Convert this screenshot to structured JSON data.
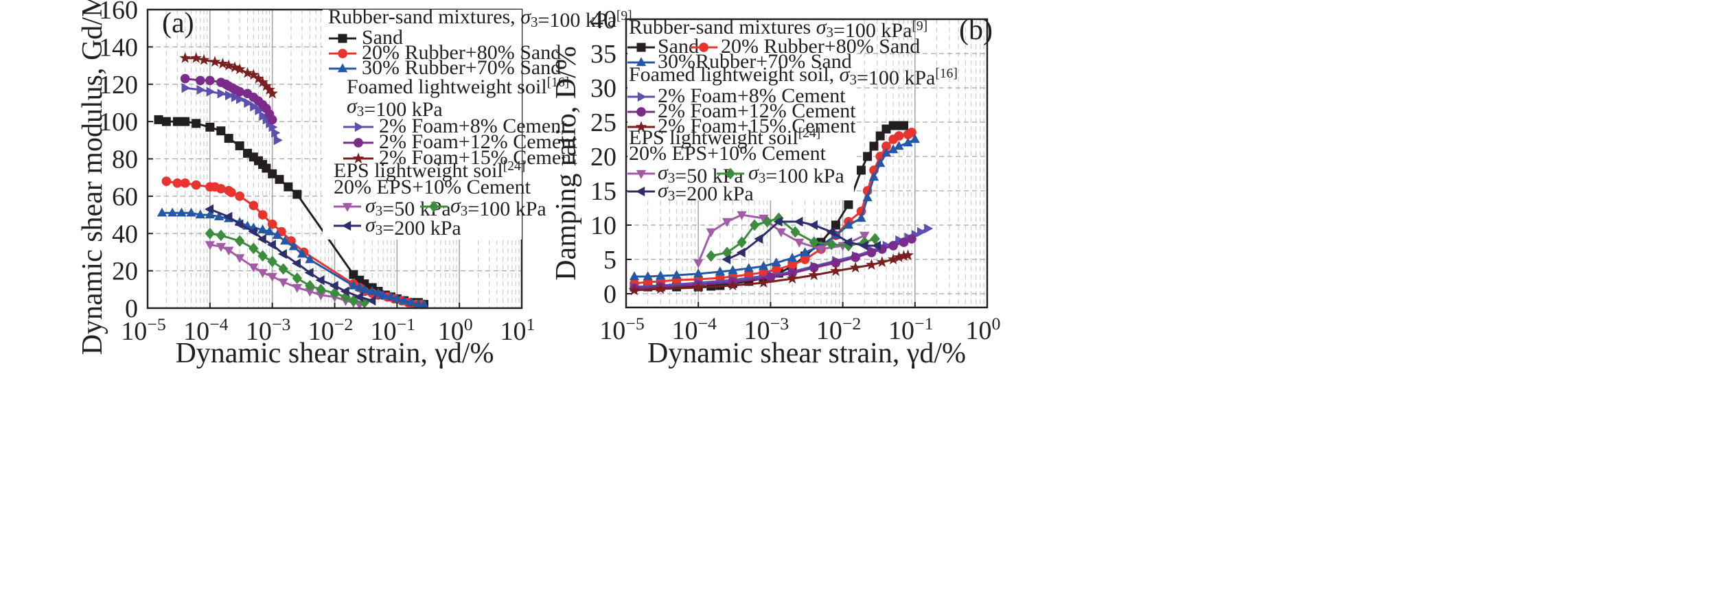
{
  "colors": {
    "sand": "#231f20",
    "rubber20": "#e8332e",
    "rubber30": "#2458a6",
    "foam8": "#5b4fb0",
    "foam12": "#7b2c8a",
    "foam15": "#7a1f1f",
    "eps50": "#a25ba6",
    "eps100": "#3d8b3d",
    "eps200": "#2d2d6b",
    "grid_major": "#a6a6a6",
    "grid_minor": "#c9c9c9"
  },
  "chart_data": [
    {
      "type": "line",
      "panel_label": "(a)",
      "xlabel": "Dynamic shear strain, γd/%",
      "ylabel": "Dynamic shear modulus, Gd/MPa",
      "x_scale": "log",
      "xlim": [
        1e-05,
        10
      ],
      "ylim": [
        0,
        160
      ],
      "x_tick_labels": [
        "10−5",
        "10−4",
        "10−3",
        "10−2",
        "10−1",
        "100",
        "101"
      ],
      "y_ticks": [
        0,
        20,
        40,
        60,
        80,
        100,
        120,
        140,
        160
      ],
      "grid": true,
      "legend_groups": [
        {
          "title": "Rubber-sand mixtures, σ3=100 kPa[9]",
          "entries": [
            "Sand",
            "20% Rubber+80% Sand",
            "30% Rubber+70% Sand"
          ]
        },
        {
          "title": "Foamed lightweight soil[16] σ3=100 kPa",
          "entries": [
            "2% Foam+8% Cement",
            "2% Foam+12% Cement",
            "2% Foam+15% Cement"
          ]
        },
        {
          "title": "EPS lightweight soil[24] 20% EPS+10% Cement",
          "entries": [
            "σ3=50 kPa",
            "σ3=100 kPa",
            "σ3=200 kPa"
          ]
        }
      ],
      "series": [
        {
          "name": "Sand",
          "marker": "square",
          "color_key": "sand",
          "x": [
            1.5e-05,
            2e-05,
            3e-05,
            4e-05,
            6e-05,
            0.0001,
            0.00015,
            0.0002,
            0.0003,
            0.0004,
            0.0005,
            0.0006,
            0.0007,
            0.0008,
            0.001,
            0.0013,
            0.0018,
            0.0025,
            0.02,
            0.025,
            0.03,
            0.04,
            0.05,
            0.065,
            0.08,
            0.1,
            0.13,
            0.17,
            0.22,
            0.27
          ],
          "y": [
            101,
            100,
            100,
            100,
            99,
            97,
            95,
            91,
            87,
            83,
            81,
            79,
            77,
            75,
            72,
            69,
            65,
            61,
            18,
            15,
            13,
            11,
            9,
            7,
            6,
            5,
            4,
            3,
            3,
            2
          ]
        },
        {
          "name": "20% Rubber+80% Sand",
          "marker": "circle",
          "color_key": "rubber20",
          "x": [
            2e-05,
            3e-05,
            4e-05,
            6e-05,
            0.0001,
            0.00012,
            0.00015,
            0.0002,
            0.00022,
            0.0003,
            0.0005,
            0.0007,
            0.001,
            0.0014,
            0.002,
            0.0032,
            0.02,
            0.025,
            0.03,
            0.04,
            0.05,
            0.07,
            0.09,
            0.12,
            0.15,
            0.2,
            0.25
          ],
          "y": [
            68,
            67,
            67,
            66,
            65,
            65,
            64,
            63,
            62,
            60,
            55,
            50,
            45,
            41,
            36,
            30,
            13,
            11,
            9,
            8,
            7,
            6,
            5,
            4,
            3,
            2,
            2
          ]
        },
        {
          "name": "30% Rubber+70% Sand",
          "marker": "triangle-up",
          "color_key": "rubber30",
          "x": [
            1.7e-05,
            2.5e-05,
            3.5e-05,
            5e-05,
            7e-05,
            0.0001,
            0.00014,
            0.0002,
            0.0003,
            0.0004,
            0.0005,
            0.0007,
            0.0009,
            0.0012,
            0.0016,
            0.0022,
            0.003,
            0.004,
            0.02,
            0.025,
            0.03,
            0.04,
            0.05,
            0.06,
            0.08,
            0.1,
            0.13,
            0.17,
            0.22,
            0.27
          ],
          "y": [
            51,
            51,
            51,
            51,
            50,
            50,
            49,
            48,
            46,
            44,
            43,
            42,
            41,
            39,
            36,
            33,
            29,
            26,
            12,
            11,
            10,
            9,
            8,
            7,
            6,
            5,
            4,
            3,
            2,
            2
          ]
        },
        {
          "name": "2% Foam+8% Cement",
          "marker": "triangle-right",
          "color_key": "foam8",
          "x": [
            4e-05,
            7e-05,
            0.0001,
            0.00015,
            0.0002,
            0.00025,
            0.0003,
            0.0004,
            0.0005,
            0.0006,
            0.0007,
            0.0008,
            0.0009,
            0.001,
            0.0011,
            0.0012
          ],
          "y": [
            118,
            117,
            116,
            115,
            114,
            113,
            112,
            110,
            108,
            106,
            103,
            101,
            99,
            97,
            94,
            90
          ]
        },
        {
          "name": "2% Foam+12% Cement",
          "marker": "circle",
          "color_key": "foam12",
          "x": [
            4e-05,
            7e-05,
            0.0001,
            0.00015,
            0.00018,
            0.0002,
            0.00023,
            0.00026,
            0.0003,
            0.0004,
            0.0005,
            0.0006,
            0.0007,
            0.0008,
            0.0009,
            0.001
          ],
          "y": [
            123,
            122,
            122,
            121,
            120,
            119,
            118,
            117,
            116,
            115,
            113,
            111,
            109,
            107,
            104,
            101
          ]
        },
        {
          "name": "2% Foam+15% Cement",
          "marker": "star",
          "color_key": "foam15",
          "x": [
            4e-05,
            6e-05,
            8e-05,
            0.00012,
            0.00016,
            0.0002,
            0.00025,
            0.0003,
            0.0004,
            0.0005,
            0.0006,
            0.0007,
            0.0008,
            0.0009,
            0.001
          ],
          "y": [
            134,
            134,
            133,
            132,
            131,
            130,
            129,
            128,
            126,
            125,
            123,
            121,
            119,
            117,
            115
          ]
        },
        {
          "name": "σ3=50 kPa",
          "marker": "triangle-down",
          "color_key": "eps50",
          "x": [
            0.0001,
            0.00015,
            0.0002,
            0.0003,
            0.0005,
            0.0007,
            0.001,
            0.0015,
            0.0025,
            0.004,
            0.006,
            0.01,
            0.015,
            0.02,
            0.025
          ],
          "y": [
            34,
            33,
            31,
            27,
            22,
            19,
            17,
            14,
            11,
            9,
            7,
            6,
            4,
            3,
            2
          ]
        },
        {
          "name": "σ3=100 kPa",
          "marker": "diamond",
          "color_key": "eps100",
          "x": [
            0.0001,
            0.00015,
            0.0003,
            0.0005,
            0.0007,
            0.001,
            0.0015,
            0.0025,
            0.004,
            0.006,
            0.01,
            0.015,
            0.02,
            0.03
          ],
          "y": [
            40,
            39,
            36,
            32,
            28,
            25,
            21,
            16,
            12,
            10,
            8,
            6,
            4,
            3
          ]
        },
        {
          "name": "σ3=200 kPa",
          "marker": "triangle-left",
          "color_key": "eps200",
          "x": [
            0.0001,
            0.0002,
            0.0003,
            0.0005,
            0.0007,
            0.001,
            0.0015,
            0.0025,
            0.004,
            0.006,
            0.01,
            0.015,
            0.025,
            0.04
          ],
          "y": [
            53,
            49,
            45,
            41,
            37,
            34,
            29,
            24,
            19,
            15,
            12,
            9,
            6,
            4
          ]
        }
      ]
    },
    {
      "type": "line",
      "panel_label": "(b)",
      "xlabel": "Dynamic shear strain, γd/%",
      "ylabel": "Damping ratio, D/%",
      "x_scale": "log",
      "xlim": [
        1e-05,
        1
      ],
      "ylim": [
        -2,
        40
      ],
      "x_tick_labels": [
        "10−5",
        "10−4",
        "10−3",
        "10−2",
        "10−1",
        "100"
      ],
      "y_ticks": [
        0,
        5,
        10,
        15,
        20,
        25,
        30,
        35,
        40
      ],
      "grid": true,
      "legend_groups": [
        {
          "title": "Rubber-sand mixtures σ3=100 kPa[9]",
          "entries": [
            "Sand",
            "20% Rubber+80% Sand",
            "30%Rubber+70% Sand"
          ]
        },
        {
          "title": "Foamed lightweight soil, σ3=100 kPa[16]",
          "entries": [
            "2% Foam+8% Cement",
            "2% Foam+12% Cement",
            "2% Foam+15% Cement"
          ]
        },
        {
          "title": "EPS lightweight soil[24] 20% EPS+10% Cement",
          "entries": [
            "σ3=50 kPa",
            "σ3=100 kPa",
            "σ3=200 kPa"
          ]
        }
      ],
      "series": [
        {
          "name": "Sand",
          "marker": "square",
          "color_key": "sand",
          "x": [
            1.3e-05,
            2e-05,
            3e-05,
            5e-05,
            0.0001,
            0.00015,
            0.0002,
            0.0003,
            0.0005,
            0.0008,
            0.0013,
            0.002,
            0.003,
            0.005,
            0.008,
            0.012,
            0.018,
            0.022,
            0.027,
            0.033,
            0.04,
            0.05,
            0.06,
            0.07
          ],
          "y": [
            1.0,
            1.0,
            1.0,
            1.0,
            1.0,
            1.1,
            1.2,
            1.5,
            1.8,
            2.3,
            3.0,
            4.0,
            5.5,
            7.5,
            10.0,
            13.0,
            18.0,
            20.0,
            21.5,
            23.0,
            24.0,
            24.5,
            24.5,
            24.5
          ]
        },
        {
          "name": "20% Rubber+80% Sand",
          "marker": "circle",
          "color_key": "rubber20",
          "x": [
            1.3e-05,
            2e-05,
            3e-05,
            5e-05,
            0.0001,
            0.0002,
            0.0003,
            0.0005,
            0.0008,
            0.0012,
            0.002,
            0.003,
            0.005,
            0.008,
            0.012,
            0.018,
            0.022,
            0.027,
            0.033,
            0.04,
            0.05,
            0.06,
            0.08,
            0.09
          ],
          "y": [
            1.5,
            1.7,
            1.8,
            2.0,
            2.1,
            2.3,
            2.5,
            2.8,
            3.1,
            3.5,
            4.2,
            5.0,
            6.5,
            8.5,
            10.5,
            12.0,
            15.0,
            18.0,
            20.0,
            21.5,
            22.5,
            23.0,
            23.2,
            23.5
          ]
        },
        {
          "name": "30%Rubber+70% Sand",
          "marker": "triangle-up",
          "color_key": "rubber30",
          "x": [
            1.3e-05,
            2e-05,
            3e-05,
            5e-05,
            0.0001,
            0.0002,
            0.0003,
            0.0005,
            0.0008,
            0.0012,
            0.002,
            0.003,
            0.005,
            0.008,
            0.012,
            0.018,
            0.022,
            0.027,
            0.033,
            0.04,
            0.05,
            0.06,
            0.08,
            0.1
          ],
          "y": [
            2.5,
            2.5,
            2.6,
            2.7,
            2.9,
            3.2,
            3.4,
            3.7,
            4.0,
            4.5,
            5.2,
            6.0,
            7.0,
            8.5,
            10.0,
            11.0,
            14.0,
            17.0,
            19.0,
            20.5,
            21.0,
            21.5,
            22.0,
            22.5
          ]
        },
        {
          "name": "2% Foam+8% Cement",
          "marker": "triangle-right",
          "color_key": "foam8",
          "x": [
            1.3e-05,
            3e-05,
            0.0001,
            0.0003,
            0.001,
            0.002,
            0.004,
            0.008,
            0.015,
            0.025,
            0.04,
            0.06,
            0.08,
            0.1,
            0.12,
            0.15
          ],
          "y": [
            1.0,
            1.2,
            1.6,
            2.0,
            2.7,
            3.2,
            4.0,
            4.8,
            5.5,
            6.3,
            7.0,
            7.8,
            8.2,
            8.6,
            9.0,
            9.5
          ]
        },
        {
          "name": "2% Foam+12% Cement",
          "marker": "circle",
          "color_key": "foam12",
          "x": [
            1.3e-05,
            3e-05,
            0.0001,
            0.0003,
            0.001,
            0.002,
            0.004,
            0.008,
            0.015,
            0.025,
            0.035,
            0.05,
            0.07,
            0.09
          ],
          "y": [
            0.8,
            1.0,
            1.3,
            1.7,
            2.4,
            3.0,
            3.8,
            4.5,
            5.3,
            6.0,
            6.5,
            7.0,
            7.5,
            8.0
          ]
        },
        {
          "name": "2% Foam+15% Cement",
          "marker": "star",
          "color_key": "foam15",
          "x": [
            1.3e-05,
            3e-05,
            0.0001,
            0.0003,
            0.0008,
            0.002,
            0.004,
            0.008,
            0.015,
            0.025,
            0.035,
            0.05,
            0.06,
            0.07,
            0.08
          ],
          "y": [
            0.5,
            0.7,
            0.9,
            1.2,
            1.6,
            2.2,
            2.7,
            3.3,
            3.8,
            4.2,
            4.6,
            5.0,
            5.3,
            5.5,
            5.6
          ]
        },
        {
          "name": "σ3=50 kPa",
          "marker": "triangle-down",
          "color_key": "eps50",
          "x": [
            0.0001,
            0.00015,
            0.00025,
            0.0004,
            0.0008,
            0.0014,
            0.0025,
            0.005,
            0.01,
            0.02
          ],
          "y": [
            4.5,
            9.0,
            10.5,
            11.5,
            11.0,
            9.0,
            7.5,
            6.5,
            7.0,
            8.5
          ]
        },
        {
          "name": "σ3=100 kPa",
          "marker": "diamond",
          "color_key": "eps100",
          "x": [
            0.00015,
            0.00025,
            0.0004,
            0.0006,
            0.0009,
            0.0013,
            0.0022,
            0.004,
            0.007,
            0.012,
            0.02,
            0.028
          ],
          "y": [
            5.5,
            6.0,
            7.5,
            10.0,
            10.5,
            11.0,
            9.0,
            7.5,
            7.2,
            7.0,
            7.5,
            8.0
          ]
        },
        {
          "name": "σ3=200 kPa",
          "marker": "triangle-left",
          "color_key": "eps200",
          "x": [
            0.00025,
            0.0004,
            0.0007,
            0.0013,
            0.0025,
            0.004,
            0.007,
            0.012,
            0.02,
            0.03
          ],
          "y": [
            5.0,
            6.0,
            8.0,
            10.5,
            10.5,
            10.0,
            9.0,
            7.5,
            7.0,
            7.0
          ]
        }
      ]
    }
  ]
}
